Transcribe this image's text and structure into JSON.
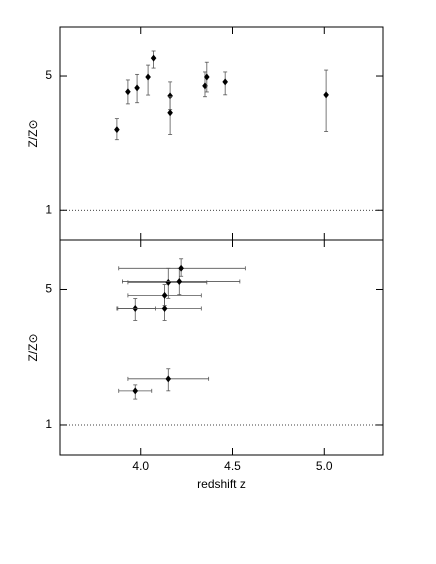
{
  "chart_data": [
    {
      "type": "scatter",
      "ylabel": "Z/Z⊙",
      "log_y": true,
      "color": "#000000",
      "xlim": [
        3.56,
        5.32
      ],
      "ylim": [
        0.7,
        9
      ],
      "xticks": [
        4,
        4.5,
        5
      ],
      "show_xtick_labels": false,
      "yticks": [
        1,
        5
      ],
      "hline": 1,
      "x": [
        3.87,
        3.93,
        3.98,
        4.04,
        4.07,
        4.16,
        4.16,
        4.35,
        4.36,
        4.46,
        5.01
      ],
      "values": [
        2.63,
        4.14,
        4.34,
        4.94,
        6.2,
        3.94,
        3.22,
        4.44,
        4.94,
        4.66,
        3.99
      ],
      "y_low": [
        2.33,
        3.58,
        3.63,
        3.98,
        5.5,
        3.34,
        2.48,
        3.9,
        4.13,
        3.99,
        2.57
      ],
      "y_high": [
        3.0,
        4.77,
        5.1,
        5.7,
        6.75,
        4.66,
        3.9,
        5.25,
        5.9,
        5.25,
        5.37
      ]
    },
    {
      "type": "scatter",
      "ylabel": "Z/Z⊙",
      "xlabel": "redshift z",
      "log_y": true,
      "color": "#000000",
      "xlim": [
        3.56,
        5.32
      ],
      "ylim": [
        0.7,
        9
      ],
      "xticks": [
        {
          "value": 4,
          "label": "4.0"
        },
        4.5,
        {
          "value": 5,
          "label": "5.0"
        }
      ],
      "show_xtick_labels": true,
      "yticks": [
        1,
        5
      ],
      "hline": 1,
      "x": [
        3.97,
        4.15,
        3.97,
        4.13,
        4.13,
        4.15,
        4.21,
        4.22
      ],
      "values": [
        1.5,
        1.73,
        3.99,
        3.99,
        4.66,
        5.44,
        5.5,
        6.43
      ],
      "y_low": [
        1.36,
        1.5,
        3.46,
        3.46,
        4.13,
        4.5,
        4.7,
        5.85
      ],
      "y_high": [
        1.61,
        1.95,
        4.49,
        4.6,
        5.3,
        6.43,
        6.43,
        7.2
      ],
      "x_low": [
        3.88,
        3.93,
        3.87,
        3.875,
        3.93,
        3.93,
        3.9,
        3.88
      ],
      "x_high": [
        4.06,
        4.37,
        4.08,
        4.33,
        4.33,
        4.36,
        4.54,
        4.57
      ]
    }
  ]
}
